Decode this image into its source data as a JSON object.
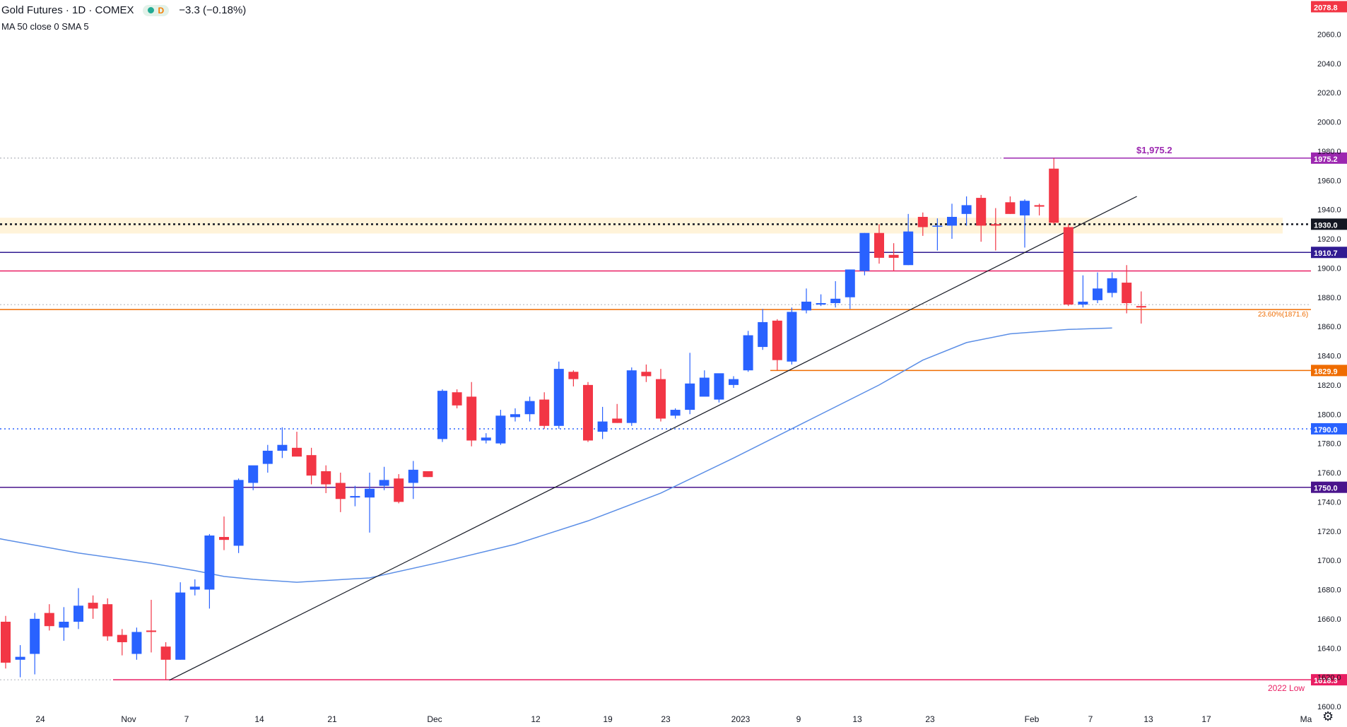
{
  "header": {
    "symbol": "Gold Futures · 1D · COMEX",
    "badge": "D",
    "change": "−3.3 (−0.18%)",
    "indicator": "MA 50 close 0 SMA 5"
  },
  "colors": {
    "up": "#2962ff",
    "down": "#f23645",
    "ma": "#5b8ee6",
    "trendline": "#131722"
  },
  "chart_data": {
    "type": "candlestick",
    "title": "Gold Futures · 1D · COMEX",
    "ylim": [
      1600,
      2080
    ],
    "y_ticks": [
      1600,
      1620,
      1640,
      1660,
      1680,
      1700,
      1720,
      1740,
      1760,
      1780,
      1800,
      1820,
      1840,
      1860,
      1880,
      1900,
      1920,
      1940,
      1960,
      1980,
      2000,
      2020,
      2040,
      2060
    ],
    "x_ticks": [
      "24",
      "Nov",
      "7",
      "14",
      "21",
      "Dec",
      "12",
      "19",
      "23",
      "2023",
      "9",
      "13",
      "23",
      "Feb",
      "7",
      "13",
      "17",
      "Ma"
    ],
    "candles": [
      {
        "o": 1658,
        "h": 1662,
        "l": 1626,
        "c": 1630
      },
      {
        "o": 1632,
        "h": 1642,
        "l": 1620,
        "c": 1634
      },
      {
        "o": 1636,
        "h": 1664,
        "l": 1622,
        "c": 1660
      },
      {
        "o": 1664,
        "h": 1670,
        "l": 1652,
        "c": 1655
      },
      {
        "o": 1654,
        "h": 1668,
        "l": 1645,
        "c": 1658
      },
      {
        "o": 1658,
        "h": 1681,
        "l": 1653,
        "c": 1669
      },
      {
        "o": 1671,
        "h": 1676,
        "l": 1660,
        "c": 1667
      },
      {
        "o": 1670,
        "h": 1674,
        "l": 1645,
        "c": 1648
      },
      {
        "o": 1649,
        "h": 1653,
        "l": 1635,
        "c": 1644
      },
      {
        "o": 1636,
        "h": 1654,
        "l": 1632,
        "c": 1651
      },
      {
        "o": 1652,
        "h": 1673,
        "l": 1637,
        "c": 1651
      },
      {
        "o": 1641,
        "h": 1644,
        "l": 1618,
        "c": 1632
      },
      {
        "o": 1632,
        "h": 1685,
        "l": 1632,
        "c": 1678
      },
      {
        "o": 1680,
        "h": 1687,
        "l": 1676,
        "c": 1682
      },
      {
        "o": 1680,
        "h": 1718,
        "l": 1667,
        "c": 1717
      },
      {
        "o": 1716,
        "h": 1730,
        "l": 1707,
        "c": 1714
      },
      {
        "o": 1710,
        "h": 1756,
        "l": 1705,
        "c": 1755
      },
      {
        "o": 1753,
        "h": 1764,
        "l": 1748,
        "c": 1765
      },
      {
        "o": 1766,
        "h": 1779,
        "l": 1760,
        "c": 1775
      },
      {
        "o": 1775,
        "h": 1791,
        "l": 1770,
        "c": 1779
      },
      {
        "o": 1777,
        "h": 1788,
        "l": 1773,
        "c": 1771
      },
      {
        "o": 1772,
        "h": 1777,
        "l": 1752,
        "c": 1758
      },
      {
        "o": 1761,
        "h": 1765,
        "l": 1746,
        "c": 1752
      },
      {
        "o": 1753,
        "h": 1760,
        "l": 1733,
        "c": 1742
      },
      {
        "o": 1743,
        "h": 1751,
        "l": 1737,
        "c": 1744
      },
      {
        "o": 1743,
        "h": 1760,
        "l": 1719,
        "c": 1749
      },
      {
        "o": 1751,
        "h": 1764,
        "l": 1748,
        "c": 1755
      },
      {
        "o": 1756,
        "h": 1759,
        "l": 1739,
        "c": 1740
      },
      {
        "o": 1753,
        "h": 1768,
        "l": 1742,
        "c": 1762
      },
      {
        "o": 1761,
        "h": 1760,
        "l": 1757,
        "c": 1757
      },
      {
        "o": 1783,
        "h": 1817,
        "l": 1781,
        "c": 1816
      },
      {
        "o": 1815,
        "h": 1817,
        "l": 1804,
        "c": 1806
      },
      {
        "o": 1812,
        "h": 1822,
        "l": 1778,
        "c": 1782
      },
      {
        "o": 1782,
        "h": 1787,
        "l": 1780,
        "c": 1784
      },
      {
        "o": 1780,
        "h": 1803,
        "l": 1779,
        "c": 1799
      },
      {
        "o": 1798,
        "h": 1804,
        "l": 1795,
        "c": 1800
      },
      {
        "o": 1800,
        "h": 1812,
        "l": 1795,
        "c": 1809
      },
      {
        "o": 1810,
        "h": 1815,
        "l": 1790,
        "c": 1792
      },
      {
        "o": 1792,
        "h": 1836,
        "l": 1790,
        "c": 1831
      },
      {
        "o": 1829,
        "h": 1830,
        "l": 1819,
        "c": 1824
      },
      {
        "o": 1820,
        "h": 1822,
        "l": 1781,
        "c": 1782
      },
      {
        "o": 1788,
        "h": 1805,
        "l": 1783,
        "c": 1795
      },
      {
        "o": 1797,
        "h": 1807,
        "l": 1794,
        "c": 1794
      },
      {
        "o": 1794,
        "h": 1832,
        "l": 1792,
        "c": 1830
      },
      {
        "o": 1829,
        "h": 1834,
        "l": 1822,
        "c": 1826
      },
      {
        "o": 1824,
        "h": 1831,
        "l": 1795,
        "c": 1797
      },
      {
        "o": 1799,
        "h": 1804,
        "l": 1797,
        "c": 1803
      },
      {
        "o": 1803,
        "h": 1842,
        "l": 1800,
        "c": 1821
      },
      {
        "o": 1812,
        "h": 1830,
        "l": 1813,
        "c": 1825
      },
      {
        "o": 1810,
        "h": 1827,
        "l": 1808,
        "c": 1828
      },
      {
        "o": 1820,
        "h": 1826,
        "l": 1818,
        "c": 1824
      },
      {
        "o": 1830,
        "h": 1857,
        "l": 1829,
        "c": 1854
      },
      {
        "o": 1846,
        "h": 1872,
        "l": 1844,
        "c": 1863
      },
      {
        "o": 1864,
        "h": 1865,
        "l": 1830,
        "c": 1837
      },
      {
        "o": 1836,
        "h": 1873,
        "l": 1834,
        "c": 1870
      },
      {
        "o": 1871,
        "h": 1886,
        "l": 1869,
        "c": 1877
      },
      {
        "o": 1875,
        "h": 1882,
        "l": 1874,
        "c": 1876
      },
      {
        "o": 1876,
        "h": 1891,
        "l": 1873,
        "c": 1879
      },
      {
        "o": 1880,
        "h": 1897,
        "l": 1872,
        "c": 1899
      },
      {
        "o": 1898,
        "h": 1924,
        "l": 1895,
        "c": 1924
      },
      {
        "o": 1924,
        "h": 1930,
        "l": 1903,
        "c": 1907
      },
      {
        "o": 1909,
        "h": 1917,
        "l": 1898,
        "c": 1907
      },
      {
        "o": 1902,
        "h": 1937,
        "l": 1902,
        "c": 1925
      },
      {
        "o": 1935,
        "h": 1938,
        "l": 1922,
        "c": 1928
      },
      {
        "o": 1929,
        "h": 1934,
        "l": 1912,
        "c": 1929
      },
      {
        "o": 1929,
        "h": 1944,
        "l": 1920,
        "c": 1935
      },
      {
        "o": 1937,
        "h": 1949,
        "l": 1929,
        "c": 1943
      },
      {
        "o": 1948,
        "h": 1950,
        "l": 1918,
        "c": 1929
      },
      {
        "o": 1930,
        "h": 1941,
        "l": 1912,
        "c": 1929
      },
      {
        "o": 1945,
        "h": 1949,
        "l": 1937,
        "c": 1937
      },
      {
        "o": 1936,
        "h": 1947,
        "l": 1914,
        "c": 1946
      },
      {
        "o": 1943,
        "h": 1944,
        "l": 1936,
        "c": 1942
      },
      {
        "o": 1968,
        "h": 1975.2,
        "l": 1930,
        "c": 1931
      },
      {
        "o": 1928,
        "h": 1930,
        "l": 1874,
        "c": 1875
      },
      {
        "o": 1875,
        "h": 1895,
        "l": 1873,
        "c": 1877
      },
      {
        "o": 1878,
        "h": 1897,
        "l": 1876,
        "c": 1886
      },
      {
        "o": 1883,
        "h": 1897,
        "l": 1880,
        "c": 1893
      },
      {
        "o": 1890,
        "h": 1902,
        "l": 1869,
        "c": 1876
      },
      {
        "o": 1874,
        "h": 1884,
        "l": 1862,
        "c": 1873
      }
    ],
    "ma50": [
      [
        -1,
        1716
      ],
      [
        0,
        1714
      ],
      [
        5,
        1705
      ],
      [
        10,
        1698
      ],
      [
        13,
        1693
      ],
      [
        15,
        1689
      ],
      [
        17,
        1687
      ],
      [
        20,
        1685
      ],
      [
        25,
        1688
      ],
      [
        30,
        1699
      ],
      [
        35,
        1711
      ],
      [
        40,
        1727
      ],
      [
        45,
        1746
      ],
      [
        50,
        1770
      ],
      [
        55,
        1795
      ],
      [
        60,
        1820
      ],
      [
        63,
        1837
      ],
      [
        66,
        1849
      ],
      [
        69,
        1855
      ],
      [
        73,
        1858
      ],
      [
        76,
        1859
      ]
    ],
    "levels": [
      {
        "value": 2078.8,
        "label": "2078.8",
        "color": "#f23645",
        "style": "none"
      },
      {
        "value": 1975.2,
        "label": "1975.2",
        "color": "#9c27b0",
        "style": "solid",
        "text": "$1,975.2"
      },
      {
        "value": 1930.0,
        "label": "1930.0",
        "color": "#131722",
        "style": "dotted"
      },
      {
        "value": 1910.7,
        "label": "1910.7",
        "color": "#311b92",
        "style": "solid"
      },
      {
        "value": 1898.0,
        "label": "",
        "color": "#e91e63",
        "style": "solid"
      },
      {
        "value": 1871.6,
        "label": "",
        "color": "#ef6c00",
        "style": "solid",
        "text": "23.60%(1871.6)"
      },
      {
        "value": 1829.9,
        "label": "1829.9",
        "color": "#ef6c00",
        "style": "solid"
      },
      {
        "value": 1790.0,
        "label": "1790.0",
        "color": "#2962ff",
        "style": "dotted"
      },
      {
        "value": 1750.0,
        "label": "1750.0",
        "color": "#4a148c",
        "style": "solid"
      },
      {
        "value": 1618.3,
        "label": "1618.3",
        "color": "#e91e63",
        "style": "solid",
        "text": "2022 Low"
      }
    ],
    "zone": {
      "from": 1927,
      "to": 1932
    },
    "trendline": {
      "from": [
        11,
        1618
      ],
      "to": [
        76,
        1949
      ]
    }
  }
}
